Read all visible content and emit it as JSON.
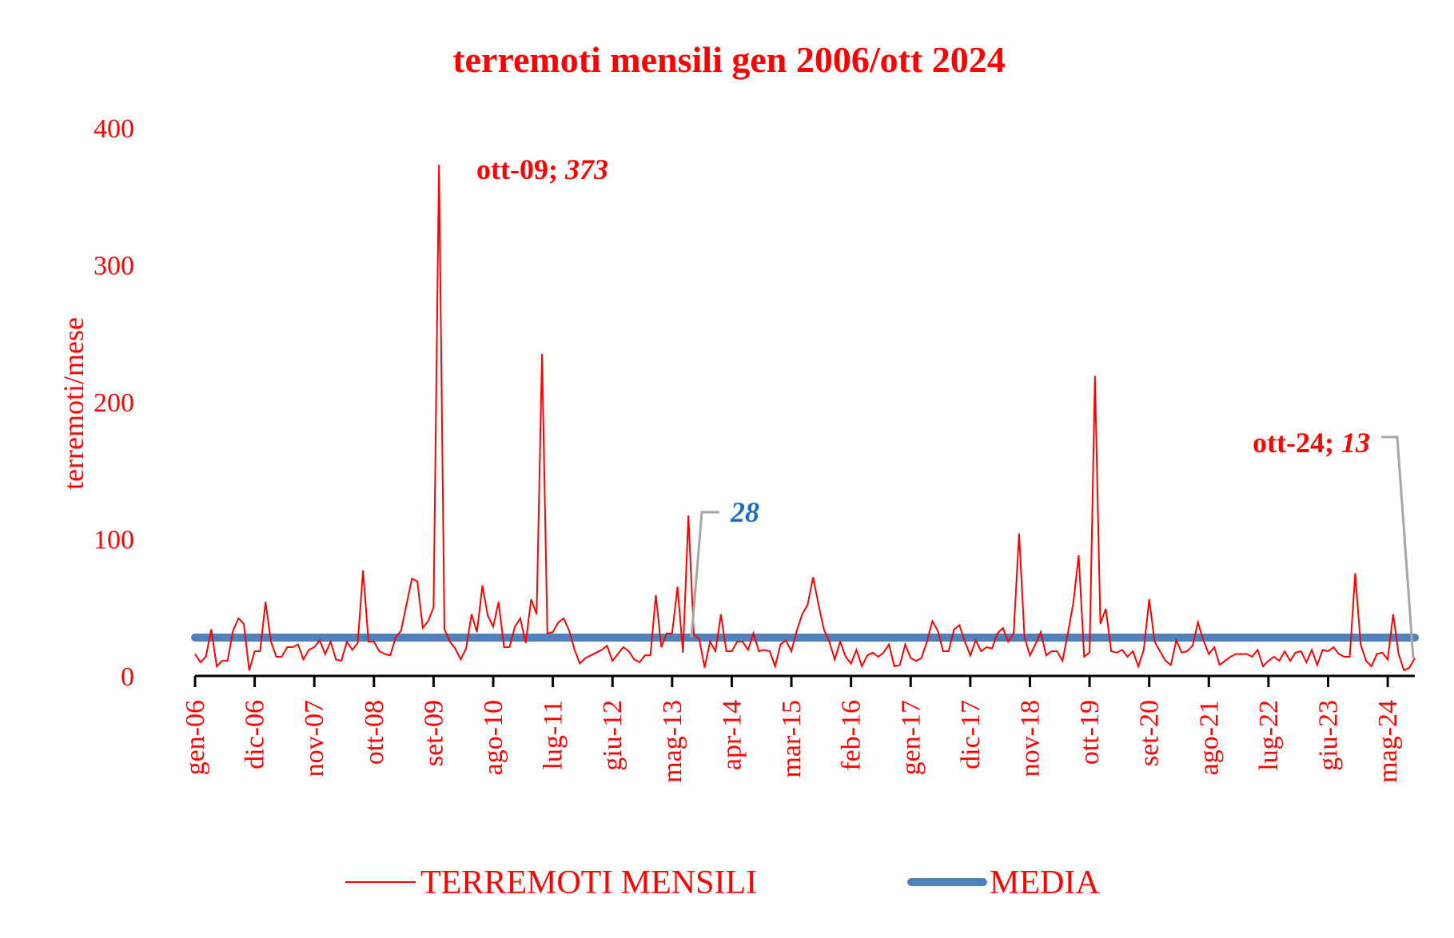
{
  "colors": {
    "series": "#ff0000",
    "mean": "#4f81bd",
    "text": "#ff0000",
    "mean_label": "#1f6fc0",
    "leader": "#a6a6a6",
    "axis": "#000000",
    "background": "#ffffff"
  },
  "chart_data": {
    "type": "line",
    "title": "terremoti mensili gen 2006/ott 2024",
    "xlabel": "",
    "ylabel": "terremoti/mese",
    "ylim": [
      0,
      400
    ],
    "yticks": [
      0,
      100,
      200,
      300,
      400
    ],
    "grid": false,
    "legend_position": "bottom",
    "x_start": "gen-06",
    "x_end": "ott-24",
    "tick_interval_months": 11,
    "xtick_labels": [
      "gen-06",
      "dic-06",
      "nov-07",
      "ott-08",
      "set-09",
      "ago-10",
      "lug-11",
      "giu-12",
      "mag-13",
      "apr-14",
      "mar-15",
      "feb-16",
      "gen-17",
      "dic-17",
      "nov-18",
      "ott-19",
      "set-20",
      "ago-21",
      "lug-22",
      "giu-23",
      "mag-24"
    ],
    "series": [
      {
        "name": "TERREMOTI MENSILI",
        "values": [
          16,
          10,
          14,
          34,
          7,
          11,
          11,
          33,
          42,
          38,
          4,
          18,
          18,
          54,
          25,
          14,
          14,
          21,
          21,
          23,
          12,
          19,
          21,
          26,
          16,
          25,
          12,
          11,
          25,
          19,
          24,
          77,
          25,
          25,
          18,
          16,
          15,
          28,
          33,
          52,
          71,
          69,
          35,
          40,
          50,
          373,
          34,
          25,
          20,
          12,
          20,
          45,
          32,
          66,
          44,
          36,
          54,
          21,
          21,
          36,
          42,
          24,
          56,
          45,
          235,
          31,
          32,
          39,
          42,
          33,
          19,
          9,
          13,
          15,
          17,
          19,
          22,
          11,
          16,
          21,
          18,
          12,
          10,
          15,
          15,
          59,
          21,
          31,
          31,
          65,
          17,
          117,
          30,
          27,
          6,
          25,
          18,
          45,
          18,
          18,
          25,
          25,
          19,
          31,
          18,
          19,
          18,
          7,
          23,
          26,
          18,
          33,
          45,
          52,
          72,
          52,
          34,
          25,
          12,
          25,
          14,
          9,
          19,
          7,
          15,
          17,
          14,
          17,
          23,
          7,
          8,
          23,
          13,
          11,
          13,
          25,
          40,
          33,
          18,
          18,
          34,
          37,
          25,
          15,
          26,
          18,
          21,
          20,
          31,
          35,
          25,
          31,
          104,
          28,
          15,
          23,
          32,
          15,
          18,
          18,
          11,
          31,
          53,
          88,
          14,
          17,
          219,
          38,
          49,
          18,
          17,
          19,
          14,
          18,
          7,
          19,
          56,
          25,
          18,
          11,
          8,
          26,
          17,
          18,
          22,
          39,
          26,
          16,
          21,
          8,
          11,
          14,
          16,
          16,
          16,
          14,
          19,
          7,
          11,
          14,
          11,
          18,
          11,
          17,
          18,
          10,
          19,
          8,
          19,
          18,
          21,
          16,
          14,
          14,
          75,
          23,
          11,
          7,
          16,
          17,
          12,
          45,
          16,
          4,
          6,
          13
        ]
      },
      {
        "name": "MEDIA",
        "constant": 28
      }
    ],
    "annotations": [
      {
        "text_label": "ott-09; ",
        "text_value": "373",
        "x": "ott-09",
        "y": 373
      },
      {
        "text_value": "28",
        "series": "MEDIA"
      },
      {
        "text_label": "ott-24; ",
        "text_value": "13",
        "x": "ott-24",
        "y": 13
      }
    ]
  },
  "legend": {
    "items": [
      {
        "label": "TERREMOTI MENSILI"
      },
      {
        "label": "MEDIA"
      }
    ]
  }
}
